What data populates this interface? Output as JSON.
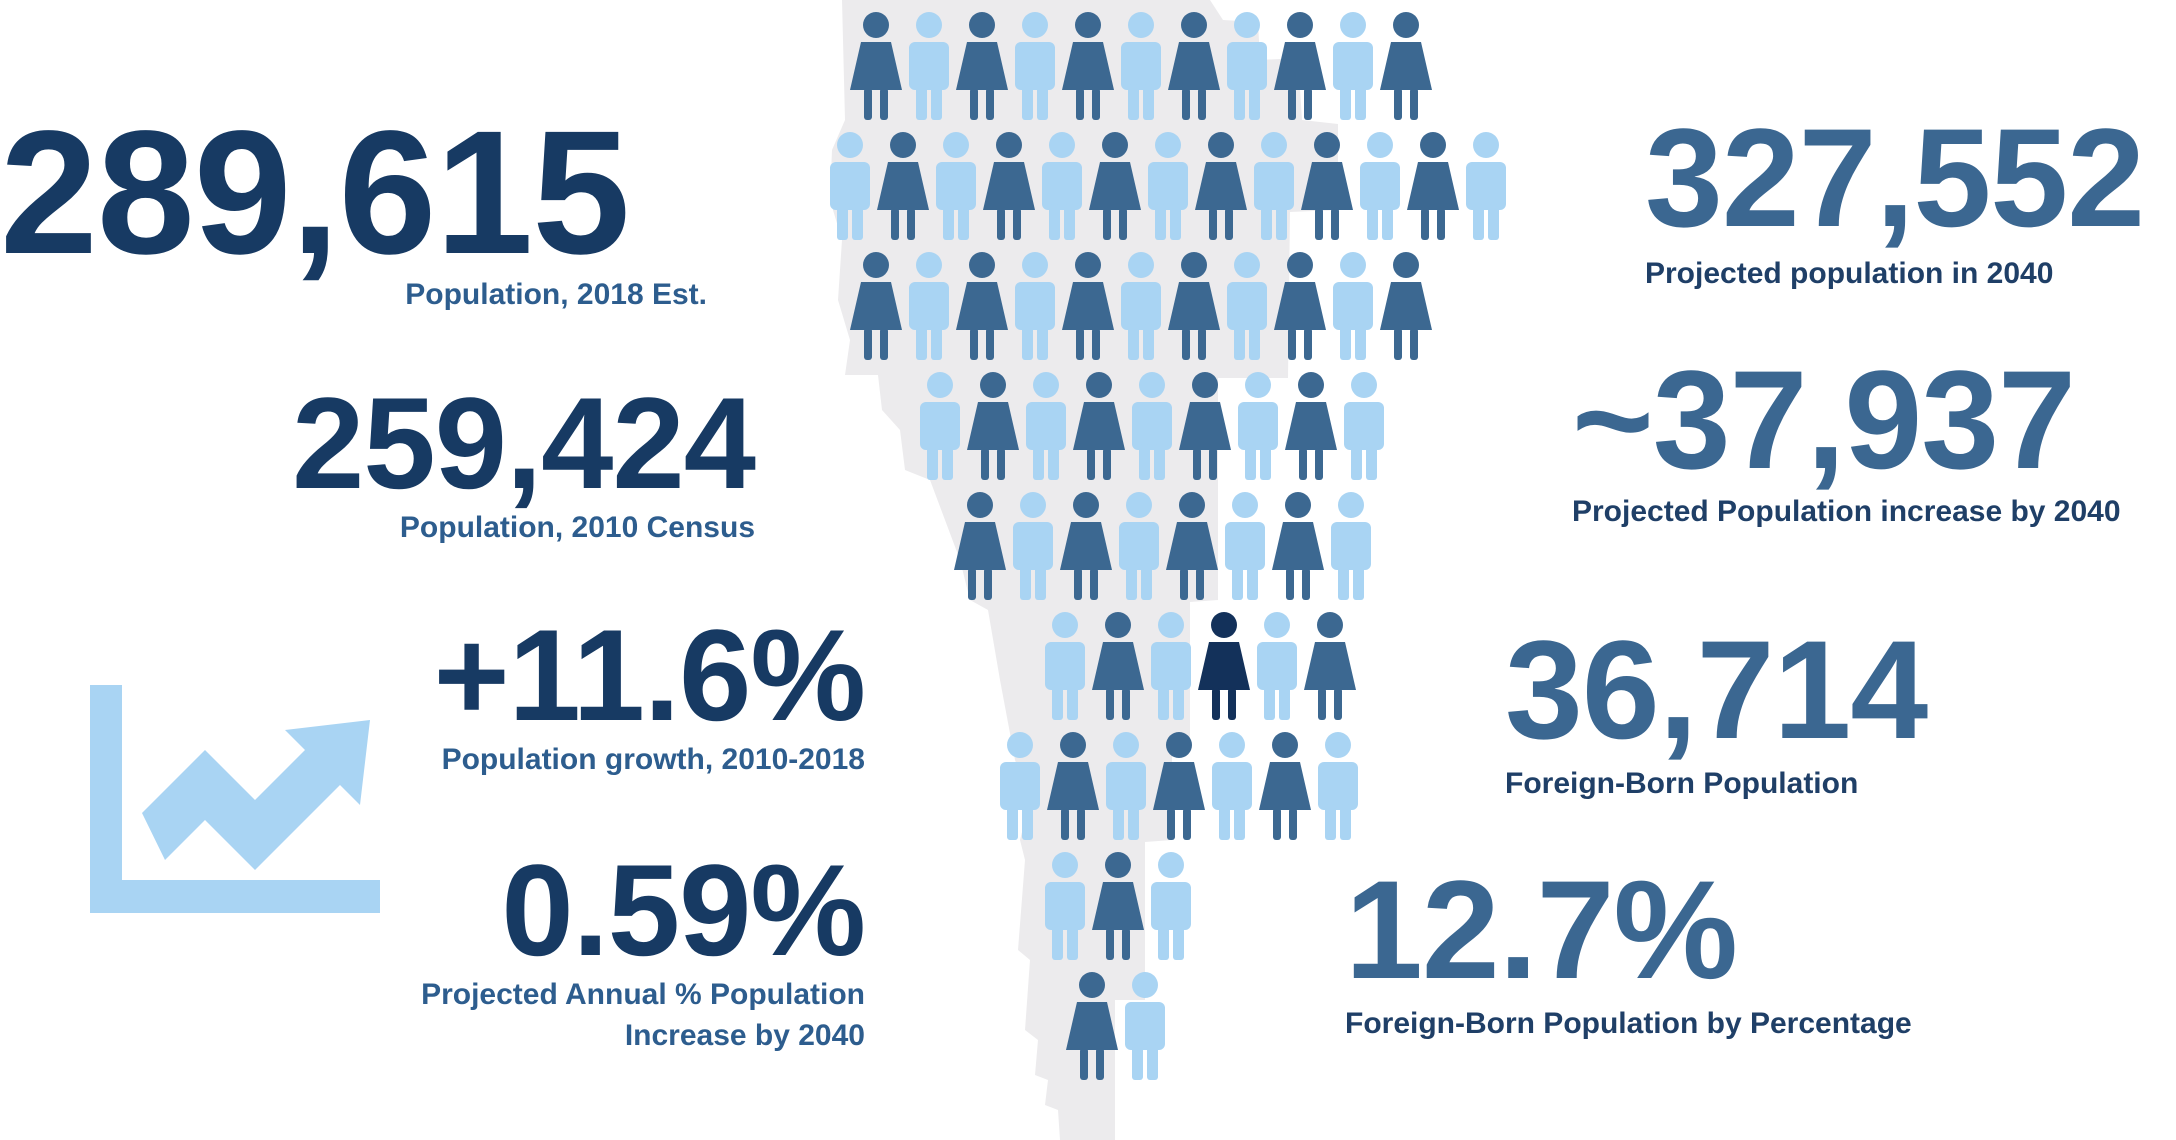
{
  "left": {
    "pop2018": {
      "value": "289,615",
      "label": "Population, 2018 Est."
    },
    "pop2010": {
      "value": "259,424",
      "label": "Population, 2010 Census"
    },
    "growth": {
      "value": "+11.6%",
      "label": "Population growth, 2010-2018"
    },
    "annual": {
      "value": "0.59%",
      "label_line1": "Projected Annual % Population",
      "label_line2": "Increase by 2040"
    }
  },
  "right": {
    "pop2040": {
      "value": "327,552",
      "label": "Projected population in 2040"
    },
    "increase": {
      "value": "~37,937",
      "label": "Projected Population increase by 2040"
    },
    "foreign": {
      "value": "36,714",
      "label": "Foreign-Born Population"
    },
    "foreign_pct": {
      "value": "12.7%",
      "label": "Foreign-Born Population by Percentage"
    }
  },
  "colors": {
    "dark_navy": "#173a63",
    "mid_blue": "#3b6791",
    "person_dark": "#3c6891",
    "person_light": "#a9d4f3",
    "person_highlight": "#13315a",
    "map_fill": "#ecebed",
    "icon_light_blue": "#a9d4f3"
  },
  "icons": {
    "trend": "trending-up-chart-icon",
    "person": "person-icon"
  }
}
